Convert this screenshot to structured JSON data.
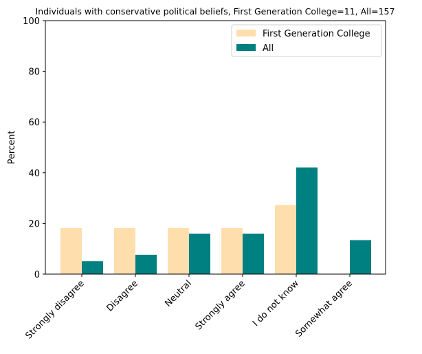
{
  "chart_data": {
    "type": "bar",
    "title": "Individuals with conservative political beliefs, First Generation College=11, All=157",
    "xlabel": "",
    "ylabel": "Percent",
    "ylim": [
      0,
      100
    ],
    "yticks": [
      0,
      20,
      40,
      60,
      80,
      100
    ],
    "categories": [
      "Strongly disagree",
      "Disagree",
      "Neutral",
      "Strongly agree",
      "I do not know",
      "Somewhat agree"
    ],
    "series": [
      {
        "name": "First Generation College",
        "color": "#ffdead",
        "values": [
          18.18,
          18.18,
          18.18,
          18.18,
          27.27,
          0
        ]
      },
      {
        "name": "All",
        "color": "#008080",
        "values": [
          5.1,
          7.64,
          15.92,
          15.92,
          42.04,
          13.38
        ]
      }
    ],
    "legend_position": "top-right",
    "grid": false
  }
}
